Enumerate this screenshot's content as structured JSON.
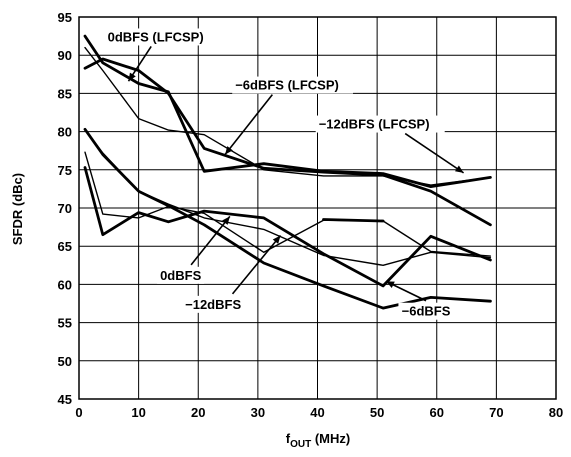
{
  "chart_data": {
    "type": "line",
    "title": "",
    "xlabel_main": "f",
    "xlabel_sub": "OUT",
    "xlabel_unit": " (MHz)",
    "ylabel": "SFDR (dBc)",
    "xlim": [
      0,
      80
    ],
    "ylim": [
      45,
      95
    ],
    "x_ticks": [
      0,
      10,
      20,
      30,
      40,
      50,
      60,
      70,
      80
    ],
    "y_ticks": [
      45,
      50,
      55,
      60,
      65,
      70,
      75,
      80,
      85,
      90,
      95
    ],
    "grid": true,
    "series": [
      {
        "name": "0dBFS (LFCSP)",
        "weight": "heavy",
        "x": [
          1,
          4,
          10,
          15,
          21,
          31,
          41,
          51,
          59,
          69
        ],
        "y": [
          88.3,
          89.5,
          88,
          85,
          77.8,
          75.2,
          74.7,
          74.3,
          72.2,
          67.8
        ]
      },
      {
        "name": "−6dBFS (LFCSP)",
        "weight": "heavy",
        "x": [
          1,
          4,
          10,
          15,
          21,
          31,
          41,
          51,
          59,
          69
        ],
        "y": [
          92.5,
          89,
          86.3,
          85.2,
          74.8,
          75.8,
          74.8,
          74.5,
          72.8,
          74
        ]
      },
      {
        "name": "−12dBFS (LFCSP)",
        "weight": "light",
        "x": [
          1,
          4,
          10,
          15,
          21,
          31,
          41,
          51,
          59,
          69
        ],
        "y": [
          91,
          88,
          81.7,
          80.2,
          79.6,
          75,
          74.2,
          74.2,
          73,
          74
        ]
      },
      {
        "name": "0dBFS",
        "weight": "heavy",
        "x": [
          1,
          4,
          10,
          15,
          21,
          31,
          41,
          51,
          59,
          69
        ],
        "y": [
          80.3,
          77,
          72.2,
          70.3,
          67.8,
          62.8,
          59.8,
          56.9,
          58.3,
          57.8
        ]
      },
      {
        "name": "−12dBFS",
        "weight": "light",
        "x": [
          1,
          4,
          10,
          15,
          21,
          31,
          41,
          51,
          59,
          69
        ],
        "y": [
          80.3,
          77.2,
          72.2,
          70.5,
          68.7,
          67.2,
          63.8,
          62.5,
          64.2,
          63.5
        ]
      },
      {
        "name": "−6dBFS",
        "weight": "heavy",
        "x": [
          1,
          4,
          10,
          15,
          21,
          31,
          41,
          51,
          59,
          69
        ],
        "y": [
          75.3,
          66.5,
          69.4,
          68.2,
          69.6,
          68.7,
          64,
          59.8,
          66.3,
          63.2
        ]
      },
      {
        "name": "",
        "weight": "light",
        "x": [
          1,
          4,
          10,
          15,
          21,
          31,
          41,
          51,
          59,
          69
        ],
        "y": [
          77.3,
          69.2,
          68.7,
          70.2,
          69.3,
          64.2,
          68.4,
          68.3,
          64.3,
          63.7
        ]
      },
      {
        "name": "",
        "weight": "heavy",
        "x": [
          41,
          51
        ],
        "y": [
          68.5,
          68.3
        ]
      }
    ],
    "annotations": [
      {
        "text": "0dBFS (LFCSP)",
        "label_x": 4.8,
        "label_y": 91.8,
        "anchor": "start",
        "point": [
          8.3,
          86.6
        ]
      },
      {
        "text": "−6dBFS (LFCSP)",
        "label_x": 26.2,
        "label_y": 85.5,
        "anchor": "start",
        "point": [
          24.5,
          77.0
        ]
      },
      {
        "text": "−12dBFS (LFCSP)",
        "label_x": 40.2,
        "label_y": 80.4,
        "anchor": "start",
        "point": [
          64.5,
          74.6
        ]
      },
      {
        "text": "0dBFS",
        "label_x": 13.6,
        "label_y": 60.6,
        "anchor": "start",
        "point": [
          25.3,
          68.9
        ]
      },
      {
        "text": "−12dBFS",
        "label_x": 17.8,
        "label_y": 56.8,
        "anchor": "start",
        "point": [
          33.8,
          66.4
        ]
      },
      {
        "text": "−6dBFS",
        "label_x": 58.2,
        "label_y": 55.9,
        "anchor": "middle",
        "point": [
          51.5,
          60.4
        ]
      }
    ]
  }
}
